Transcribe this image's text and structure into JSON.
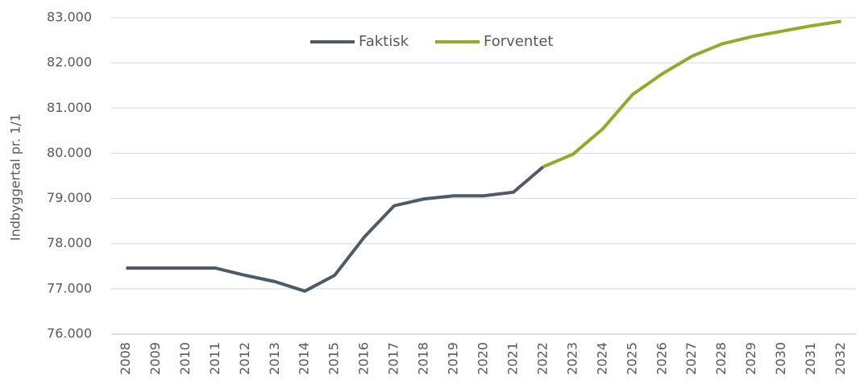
{
  "chart_data": {
    "type": "line",
    "y_label": "Indbyggertal pr. 1/1",
    "categories": [
      "2008",
      "2009",
      "2010",
      "2011",
      "2012",
      "2013",
      "2014",
      "2015",
      "2016",
      "2017",
      "2018",
      "2019",
      "2020",
      "2021",
      "2022",
      "2023",
      "2024",
      "2025",
      "2026",
      "2027",
      "2028",
      "2029",
      "2030",
      "2031",
      "2032"
    ],
    "series": [
      {
        "name": "Faktisk",
        "color": "#4d5a68",
        "values": [
          77460,
          77460,
          77460,
          77460,
          77300,
          77160,
          76950,
          77300,
          78150,
          78840,
          78990,
          79060,
          79060,
          79140,
          79700,
          null,
          null,
          null,
          null,
          null,
          null,
          null,
          null,
          null,
          null
        ]
      },
      {
        "name": "Forventet",
        "color": "#8fac2a",
        "values": [
          null,
          null,
          null,
          null,
          null,
          null,
          null,
          null,
          null,
          null,
          null,
          null,
          null,
          null,
          79700,
          79980,
          80540,
          81300,
          81760,
          82150,
          82420,
          82580,
          82700,
          82820,
          82920
        ]
      }
    ],
    "ylim": [
      76000,
      83000
    ],
    "yticks": [
      {
        "value": 76000,
        "label": "76.000"
      },
      {
        "value": 77000,
        "label": "77.000"
      },
      {
        "value": 78000,
        "label": "78.000"
      },
      {
        "value": 79000,
        "label": "79.000"
      },
      {
        "value": 80000,
        "label": "80.000"
      },
      {
        "value": 81000,
        "label": "81.000"
      },
      {
        "value": 82000,
        "label": "82.000"
      },
      {
        "value": 83000,
        "label": "83.000"
      }
    ],
    "grid": true,
    "legend": "top"
  }
}
